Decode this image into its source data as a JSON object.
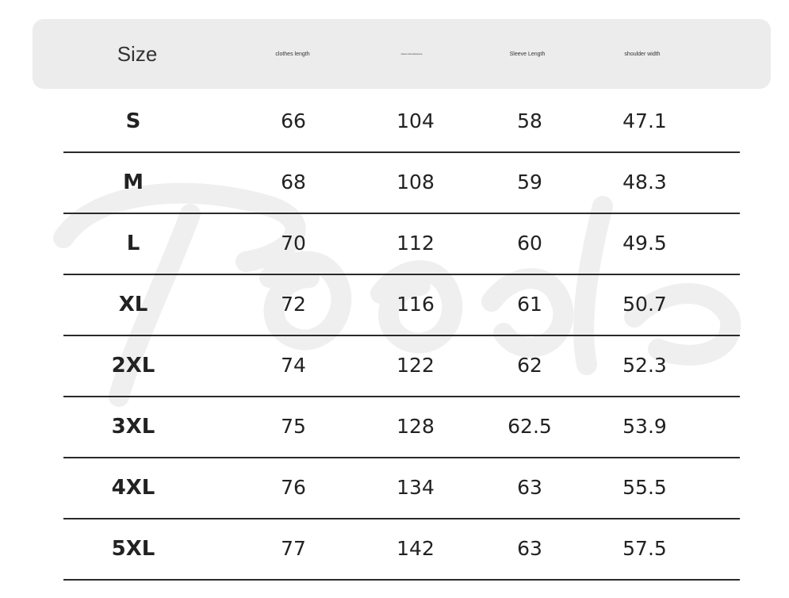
{
  "header": {
    "size_label": "Size",
    "col1": "clothes length",
    "col2": "chest circumference",
    "col3": "Sleeve Length",
    "col4": "shoulder width"
  },
  "rows": [
    {
      "size": "S",
      "length": "66",
      "chest": "104",
      "sleeve": "58",
      "shoulder": "47.1"
    },
    {
      "size": "M",
      "length": "68",
      "chest": "108",
      "sleeve": "59",
      "shoulder": "48.3"
    },
    {
      "size": "L",
      "length": "70",
      "chest": "112",
      "sleeve": "60",
      "shoulder": "49.5"
    },
    {
      "size": "XL",
      "length": "72",
      "chest": "116",
      "sleeve": "61",
      "shoulder": "50.7"
    },
    {
      "size": "2XL",
      "length": "74",
      "chest": "122",
      "sleeve": "62",
      "shoulder": "52.3"
    },
    {
      "size": "3XL",
      "length": "75",
      "chest": "128",
      "sleeve": "62.5",
      "shoulder": "53.9"
    },
    {
      "size": "4XL",
      "length": "76",
      "chest": "134",
      "sleeve": "63",
      "shoulder": "55.5"
    },
    {
      "size": "5XL",
      "length": "77",
      "chest": "142",
      "sleeve": "63",
      "shoulder": "57.5"
    }
  ]
}
